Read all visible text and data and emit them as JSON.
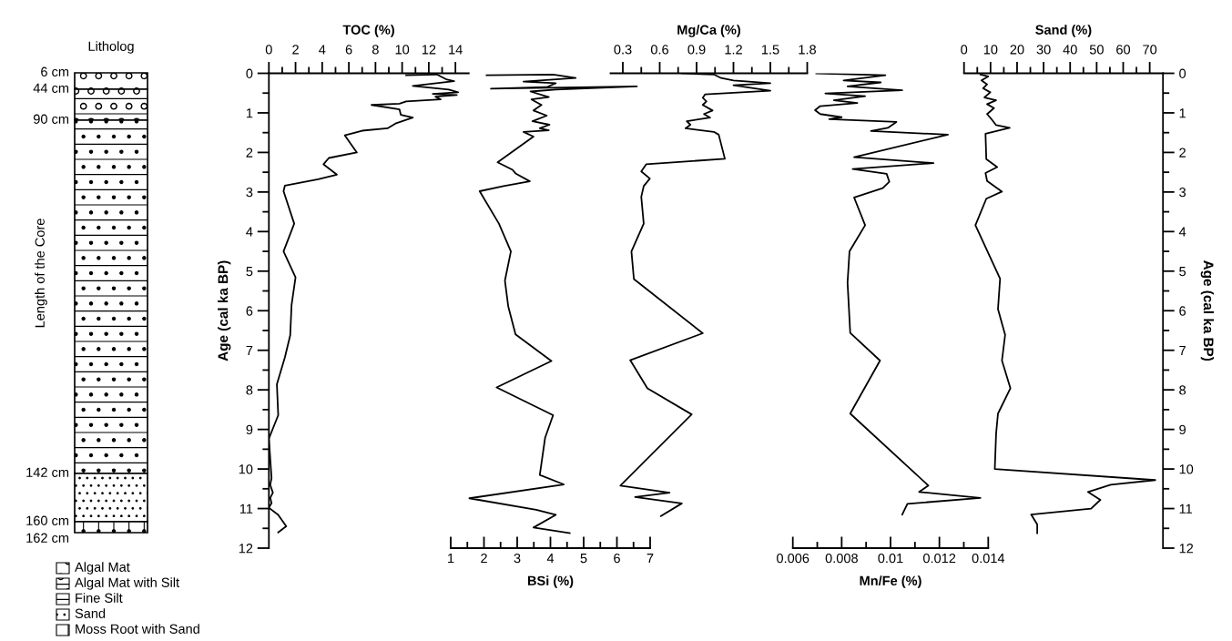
{
  "chart_data": [
    {
      "type": "other",
      "title": "Litholog",
      "ylabel": "Length of the Core",
      "categories": [
        "Algal Mat",
        "Algal Mat with Silt",
        "Fine Silt",
        "Sand",
        "Moss Root with Sand"
      ],
      "annotations": [
        "6 cm",
        "44 cm",
        "90 cm",
        "142 cm",
        "160 cm",
        "162 cm"
      ]
    },
    {
      "type": "line",
      "orientation": "horizontal",
      "xlabel": "TOC (%)",
      "ylabel": "Age (cal ka BP)",
      "xlim": [
        0,
        15
      ],
      "xticks": [
        0,
        {
          "value": 1,
          "label": null
        },
        2,
        {
          "value": 3,
          "label": null
        },
        4,
        {
          "value": 5,
          "label": null
        },
        6,
        {
          "value": 7,
          "label": null
        },
        8,
        {
          "value": 9,
          "label": null
        },
        10,
        {
          "value": 11,
          "label": null
        },
        12,
        {
          "value": 13,
          "label": null
        },
        14
      ],
      "ylim": [
        12,
        0
      ],
      "yticks": [
        0,
        {
          "value": 0.5,
          "label": null
        },
        1,
        {
          "value": 1.5,
          "label": null
        },
        2,
        {
          "value": 2.5,
          "label": null
        },
        3,
        {
          "value": 3.5,
          "label": null
        },
        4,
        {
          "value": 4.5,
          "label": null
        },
        5,
        {
          "value": 5.5,
          "label": null
        },
        6,
        {
          "value": 6.5,
          "label": null
        },
        7,
        {
          "value": 7.5,
          "label": null
        },
        8,
        {
          "value": 8.5,
          "label": null
        },
        9,
        {
          "value": 9.5,
          "label": null
        },
        10,
        {
          "value": 10.5,
          "label": null
        },
        11,
        {
          "value": 11.5,
          "label": null
        },
        12
      ],
      "series": [
        {
          "color": "#000000",
          "x": [
            0.05,
            0.03,
            0.15,
            0.2,
            0.32,
            0.41,
            0.48,
            0.52,
            0.55,
            0.59,
            0.66,
            0.71,
            0.77,
            0.8,
            0.91,
            1.05,
            1.12,
            1.27,
            1.39,
            1.45,
            1.57,
            2.0,
            2.14,
            2.3,
            2.56,
            2.68,
            2.84,
            2.98,
            3.8,
            4.5,
            5.16,
            5.86,
            6.62,
            7.18,
            7.86,
            8.64,
            9.23,
            10.23,
            10.4,
            10.6,
            10.73,
            10.86,
            10.98,
            11.16,
            11.45,
            11.6
          ],
          "values": [
            10.3,
            12.6,
            13.3,
            13.9,
            10.8,
            13.5,
            14.2,
            12.3,
            14.1,
            12.5,
            12.9,
            10.3,
            9.8,
            7.7,
            9.8,
            9.9,
            10.8,
            9.5,
            8.9,
            7.0,
            5.7,
            6.6,
            4.5,
            4.1,
            5.1,
            3.7,
            1.2,
            1.1,
            1.9,
            1.1,
            2.0,
            1.7,
            1.6,
            1.2,
            0.6,
            0.7,
            0,
            0.2,
            0.1,
            0.3,
            0.1,
            0.2,
            0,
            0.7,
            1.3,
            0.7
          ]
        }
      ]
    },
    {
      "type": "line",
      "orientation": "horizontal",
      "xlabel": "BSi (%)",
      "tick_labels": "x",
      "xlim": [
        1,
        7
      ],
      "xticks": [
        1,
        {
          "value": 1.5,
          "label": null
        },
        2,
        {
          "value": 2.5,
          "label": null
        },
        3,
        {
          "value": 3.5,
          "label": null
        },
        4,
        {
          "value": 4.5,
          "label": null
        },
        5,
        {
          "value": 5.5,
          "label": null
        },
        6,
        {
          "value": 6.5,
          "label": null
        },
        7
      ],
      "ylim": [
        12,
        0
      ],
      "series": [
        {
          "color": "#000000",
          "x": [
            0.05,
            0.03,
            0.12,
            0.21,
            0.25,
            0.35,
            0.39,
            0.33,
            0.41,
            0.46,
            0.6,
            0.66,
            0.8,
            0.94,
            1.07,
            1.21,
            1.3,
            1.39,
            1.44,
            1.48,
            1.6,
            2.25,
            2.44,
            2.53,
            2.73,
            2.85,
            2.98,
            3.8,
            4.5,
            5.24,
            5.89,
            6.6,
            7.27,
            7.94,
            8.64,
            9.21,
            10.15,
            10.39,
            10.74,
            11.03,
            11.16,
            11.48,
            11.62
          ],
          "values": [
            2.08,
            4.08,
            4.76,
            3.19,
            4.16,
            3.89,
            2.21,
            6.6,
            4.16,
            3.4,
            3.95,
            3.43,
            3.73,
            3.49,
            3.89,
            3.46,
            3.97,
            3.68,
            3.95,
            3.19,
            3.49,
            2.41,
            2.86,
            2.95,
            3.38,
            2.59,
            1.87,
            2.45,
            2.81,
            2.63,
            2.73,
            2.95,
            4.03,
            2.38,
            4.08,
            3.84,
            3.68,
            4.4,
            1.56,
            3.57,
            4.16,
            3.49,
            4.58
          ]
        }
      ]
    },
    {
      "type": "line",
      "orientation": "horizontal",
      "xlabel": "Mg/Ca (%)",
      "tick_labels": "x",
      "xlim": [
        0.2,
        1.8
      ],
      "xticks": [
        0.3,
        {
          "value": 0.45,
          "label": null
        },
        0.6,
        {
          "value": 0.75,
          "label": null
        },
        0.9,
        {
          "value": 1.05,
          "label": null
        },
        1.2,
        {
          "value": 1.35,
          "label": null
        },
        1.5,
        {
          "value": 1.65,
          "label": null
        },
        1.8
      ],
      "ylim": [
        12,
        0
      ],
      "series": [
        {
          "color": "#000000",
          "x": [
            0,
            0.03,
            0.12,
            0.18,
            0.25,
            0.3,
            0.44,
            0.53,
            0.62,
            0.71,
            0.8,
            0.94,
            1.03,
            1.12,
            1.21,
            1.3,
            1.39,
            1.48,
            1.55,
            2.16,
            2.3,
            2.48,
            2.66,
            2.85,
            3.12,
            3.8,
            4.5,
            5.2,
            6.57,
            7.25,
            7.96,
            8.62,
            10.42,
            10.6,
            10.71,
            10.87,
            11.19
          ],
          "values": [
            0.78,
            1.04,
            1.1,
            1.2,
            1.5,
            1.2,
            1.5,
            0.97,
            0.95,
            0.98,
            0.95,
            1.03,
            0.96,
            1.01,
            0.82,
            0.85,
            0.81,
            1.04,
            1.08,
            1.13,
            0.49,
            0.45,
            0.52,
            0.47,
            0.45,
            0.47,
            0.37,
            0.39,
            0.95,
            0.36,
            0.5,
            0.86,
            0.28,
            0.68,
            0.4,
            0.78,
            0.61
          ]
        }
      ]
    },
    {
      "type": "line",
      "orientation": "horizontal",
      "xlabel": "Mn/Fe (%)",
      "tick_labels": "x",
      "xlim": [
        0.006,
        0.014
      ],
      "xticks": [
        0.006,
        {
          "value": 0.007,
          "label": null
        },
        0.008,
        {
          "value": 0.009,
          "label": null
        },
        0.01,
        {
          "value": 0.011,
          "label": null
        },
        0.012,
        {
          "value": 0.013,
          "label": null
        },
        0.014
      ],
      "ylim": [
        12,
        0
      ],
      "series": [
        {
          "color": "#000000",
          "x": [
            0,
            0.05,
            0.18,
            0.23,
            0.33,
            0.43,
            0.51,
            0.58,
            0.68,
            0.75,
            0.83,
            0.93,
            1.03,
            1.11,
            1.16,
            1.23,
            1.38,
            1.46,
            1.55,
            2.12,
            2.27,
            2.42,
            2.54,
            2.74,
            2.9,
            3.14,
            3.84,
            4.5,
            5.29,
            6.56,
            7.26,
            8.6,
            10.42,
            10.58,
            10.73,
            10.88,
            11.15
          ],
          "values": [
            0.00696,
            0.00979,
            0.00808,
            0.0096,
            0.00824,
            0.01048,
            0.00733,
            0.00896,
            0.00768,
            0.00864,
            0.00712,
            0.00691,
            0.00712,
            0.008,
            0.00749,
            0.01024,
            0.00989,
            0.0092,
            0.01235,
            0.00851,
            0.01176,
            0.00845,
            0.00984,
            0.00995,
            0.00968,
            0.00851,
            0.00896,
            0.00832,
            0.00824,
            0.00835,
            0.00957,
            0.00835,
            0.01155,
            0.01117,
            0.01368,
            0.01069,
            0.01048
          ]
        }
      ]
    },
    {
      "type": "line",
      "orientation": "horizontal",
      "xlabel": "Sand (%)",
      "ylabel": "Age (cal ka BP)",
      "xlim": [
        0,
        75
      ],
      "xticks": [
        0,
        {
          "value": 5,
          "label": null
        },
        10,
        {
          "value": 15,
          "label": null
        },
        20,
        {
          "value": 25,
          "label": null
        },
        30,
        {
          "value": 35,
          "label": null
        },
        40,
        {
          "value": 45,
          "label": null
        },
        50,
        {
          "value": 55,
          "label": null
        },
        60,
        {
          "value": 65,
          "label": null
        },
        70
      ],
      "ylim": [
        12,
        0
      ],
      "yticks": [
        0,
        {
          "value": 0.5,
          "label": null
        },
        1,
        {
          "value": 1.5,
          "label": null
        },
        2,
        {
          "value": 2.5,
          "label": null
        },
        3,
        {
          "value": 3.5,
          "label": null
        },
        4,
        {
          "value": 4.5,
          "label": null
        },
        5,
        {
          "value": 5.5,
          "label": null
        },
        6,
        {
          "value": 6.5,
          "label": null
        },
        7,
        {
          "value": 7.5,
          "label": null
        },
        8,
        {
          "value": 8.5,
          "label": null
        },
        9,
        {
          "value": 9.5,
          "label": null
        },
        10,
        {
          "value": 10.5,
          "label": null
        },
        11,
        {
          "value": 11.5,
          "label": null
        },
        12
      ],
      "series": [
        {
          "color": "#000000",
          "x": [
            0.03,
            0.08,
            0.18,
            0.28,
            0.38,
            0.48,
            0.61,
            0.68,
            0.78,
            0.88,
            1.03,
            1.18,
            1.31,
            1.38,
            1.53,
            2.17,
            2.37,
            2.52,
            2.72,
            2.99,
            3.17,
            3.84,
            5.19,
            5.96,
            6.61,
            7.26,
            7.96,
            8.6,
            9.1,
            10.0,
            10.28,
            10.4,
            10.58,
            10.78,
            11.0,
            11.15,
            11.4,
            11.62
          ],
          "values": [
            6.2,
            9.1,
            6.6,
            8.7,
            7.2,
            9.9,
            7.7,
            12.1,
            8.7,
            11.3,
            8.7,
            10.6,
            12.1,
            17.2,
            8.1,
            8.4,
            12.5,
            8.1,
            8.7,
            14.3,
            8.4,
            4.3,
            13.6,
            12.8,
            15.5,
            14.3,
            17.5,
            12.8,
            12.1,
            11.6,
            72.1,
            55.3,
            46.7,
            51.4,
            47.9,
            25.3,
            27.6,
            27.6
          ]
        }
      ]
    }
  ]
}
